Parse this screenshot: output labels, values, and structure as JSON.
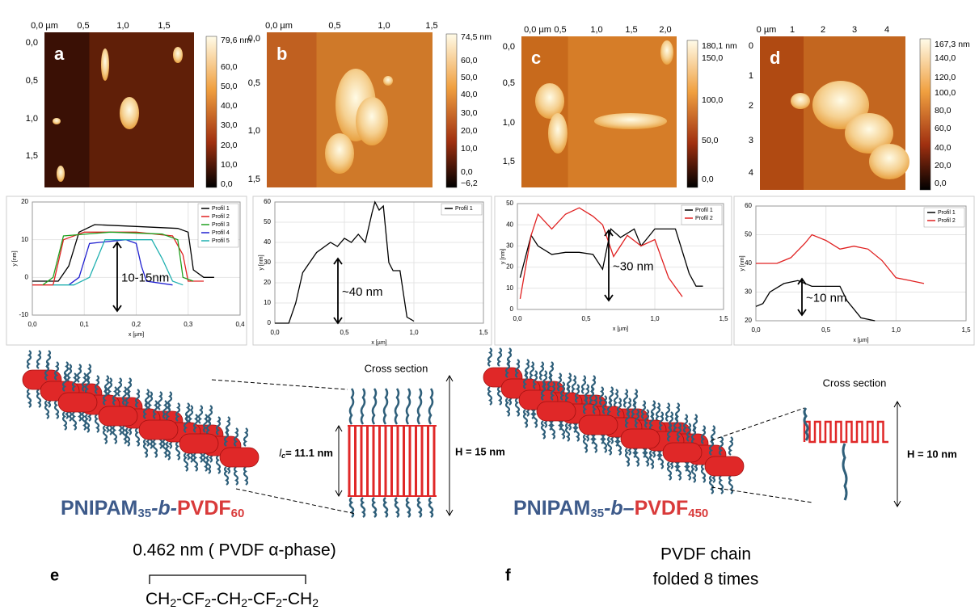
{
  "panels": [
    {
      "label": "a",
      "image": {
        "xticks": [
          "0,0 µm",
          "0,5",
          "1,0",
          "1,5"
        ],
        "yticks": [
          "0,0",
          "0,5",
          "1,0",
          "1,5"
        ],
        "colorbar": [
          "79,6 nm",
          "60,0",
          "50,0",
          "40,0",
          "30,0",
          "20,0",
          "10,0",
          "0,0"
        ]
      },
      "profile": {
        "ylabel": "y [nm]",
        "xlabel": "x [µm]",
        "annotation": "10-15nm",
        "xlim": [
          0,
          0.4
        ],
        "ylim": [
          -10,
          20
        ],
        "xticks": [
          {
            "value": 0,
            "label": "0,0"
          },
          {
            "value": 0.1,
            "label": "0,1"
          },
          {
            "value": 0.2,
            "label": "0,2"
          },
          {
            "value": 0.3,
            "label": "0,3"
          },
          {
            "value": 0.4,
            "label": "0,4"
          }
        ],
        "yticks": [
          -10,
          0,
          10,
          20
        ],
        "series": [
          {
            "name": "Profil 1",
            "color": "#000000",
            "x": [
              0,
              0.05,
              0.07,
              0.09,
              0.12,
              0.2,
              0.28,
              0.3,
              0.31,
              0.33,
              0.35
            ],
            "y": [
              -1,
              -1,
              3,
              12,
              14,
              13.5,
              13,
              12,
              2,
              0,
              0
            ]
          },
          {
            "name": "Profil 2",
            "color": "#e02020",
            "x": [
              0,
              0.04,
              0.06,
              0.1,
              0.2,
              0.27,
              0.29,
              0.3,
              0.33
            ],
            "y": [
              -2,
              -2,
              10,
              12,
              12,
              11,
              6,
              -1,
              -1
            ]
          },
          {
            "name": "Profil 3",
            "color": "#20a020",
            "x": [
              0.02,
              0.04,
              0.06,
              0.15,
              0.25,
              0.28,
              0.29,
              0.31
            ],
            "y": [
              -2,
              0,
              11,
              12,
              11.5,
              10,
              0,
              -1
            ]
          },
          {
            "name": "Profil 4",
            "color": "#2020d0",
            "x": [
              0.07,
              0.09,
              0.11,
              0.18,
              0.2,
              0.21,
              0.22,
              0.27
            ],
            "y": [
              -2,
              0,
              9,
              10,
              9,
              3,
              -1,
              -2
            ]
          },
          {
            "name": "Profil 5",
            "color": "#20b0b0",
            "x": [
              0.04,
              0.08,
              0.11,
              0.14,
              0.23,
              0.25,
              0.27,
              0.29
            ],
            "y": [
              -2,
              -2,
              0,
              10,
              10,
              5,
              -1,
              -2
            ]
          }
        ]
      }
    },
    {
      "label": "b",
      "image": {
        "xticks": [
          "0,0 µm",
          "0,5",
          "1,0",
          "1,5"
        ],
        "yticks": [
          "0,0",
          "0,5",
          "1,0",
          "1,5"
        ],
        "colorbar": [
          "74,5 nm",
          "60,0",
          "50,0",
          "40,0",
          "30,0",
          "20,0",
          "10,0",
          "0,0",
          "−6,2"
        ]
      },
      "profile": {
        "ylabel": "y [nm]",
        "xlabel": "x [µm]",
        "annotation": "~40 nm",
        "xlim": [
          0,
          1.5
        ],
        "ylim": [
          0,
          60
        ],
        "xticks": [
          {
            "value": 0,
            "label": "0,0"
          },
          {
            "value": 0.5,
            "label": "0,5"
          },
          {
            "value": 1,
            "label": "1,0"
          },
          {
            "value": 1.5,
            "label": "1,5"
          }
        ],
        "yticks": [
          0,
          10,
          20,
          30,
          40,
          50,
          60
        ],
        "series": [
          {
            "name": "Profil 1",
            "color": "#000000",
            "x": [
              0,
              0.1,
              0.15,
              0.2,
              0.3,
              0.4,
              0.45,
              0.5,
              0.55,
              0.6,
              0.65,
              0.7,
              0.72,
              0.75,
              0.78,
              0.82,
              0.85,
              0.9,
              0.95,
              1.0
            ],
            "y": [
              0,
              0,
              10,
              25,
              35,
              40,
              38,
              42,
              40,
              44,
              40,
              55,
              60,
              56,
              58,
              30,
              26,
              26,
              3,
              1
            ]
          }
        ]
      }
    },
    {
      "label": "c",
      "image": {
        "xticks": [
          "0,0 µm",
          "0,5",
          "1,0",
          "1,5",
          "2,0"
        ],
        "yticks": [
          "0,0",
          "0,5",
          "1,0",
          "1,5"
        ],
        "colorbar": [
          "180,1 nm",
          "150,0",
          "100,0",
          "50,0",
          "0,0"
        ]
      },
      "profile": {
        "ylabel": "y [nm]",
        "xlabel": "x [µm]",
        "annotation": "~30 nm",
        "xlim": [
          0,
          1.5
        ],
        "ylim": [
          0,
          50
        ],
        "xticks": [
          {
            "value": 0,
            "label": "0,0"
          },
          {
            "value": 0.5,
            "label": "0,5"
          },
          {
            "value": 1,
            "label": "1,0"
          },
          {
            "value": 1.5,
            "label": "1,5"
          }
        ],
        "yticks": [
          0,
          10,
          20,
          30,
          40,
          50
        ],
        "series": [
          {
            "name": "Profil 1",
            "color": "#000000",
            "x": [
              0.02,
              0.1,
              0.15,
              0.25,
              0.35,
              0.45,
              0.55,
              0.62,
              0.68,
              0.75,
              0.85,
              0.9,
              1.0,
              1.05,
              1.15,
              1.25,
              1.3,
              1.35
            ],
            "y": [
              15,
              35,
              30,
              26,
              27,
              27,
              26,
              19,
              38,
              34,
              38,
              30,
              38,
              38,
              38,
              17,
              11,
              11
            ]
          },
          {
            "name": "Profil 2",
            "color": "#e02020",
            "x": [
              0.02,
              0.1,
              0.15,
              0.25,
              0.35,
              0.45,
              0.55,
              0.62,
              0.7,
              0.8,
              0.9,
              1.0,
              1.1,
              1.2
            ],
            "y": [
              5,
              35,
              45,
              38,
              45,
              48,
              44,
              40,
              25,
              35,
              30,
              33,
              15,
              6
            ]
          }
        ]
      }
    },
    {
      "label": "d",
      "image": {
        "xticks": [
          "0 µm",
          "1",
          "2",
          "3",
          "4"
        ],
        "yticks": [
          "0",
          "1",
          "2",
          "3",
          "4"
        ],
        "colorbar": [
          "167,3 nm",
          "140,0",
          "120,0",
          "100,0",
          "80,0",
          "60,0",
          "40,0",
          "20,0",
          "0,0"
        ]
      },
      "profile": {
        "ylabel": "y [nm]",
        "xlabel": "x [µm]",
        "annotation": "~10 nm",
        "xlim": [
          0,
          1.5
        ],
        "ylim": [
          20,
          60
        ],
        "xticks": [
          {
            "value": 0,
            "label": "0,0"
          },
          {
            "value": 0.5,
            "label": "0,5"
          },
          {
            "value": 1,
            "label": "1,0"
          },
          {
            "value": 1.5,
            "label": "1,5"
          }
        ],
        "yticks": [
          20,
          30,
          40,
          50,
          60
        ],
        "series": [
          {
            "name": "Profil 1",
            "color": "#000000",
            "x": [
              0,
              0.05,
              0.1,
              0.2,
              0.3,
              0.4,
              0.5,
              0.6,
              0.65,
              0.75,
              0.85
            ],
            "y": [
              25,
              26,
              30,
              33,
              34,
              32,
              32,
              32,
              27,
              21,
              20
            ]
          },
          {
            "name": "Profil 2",
            "color": "#e02020",
            "x": [
              0,
              0.15,
              0.25,
              0.35,
              0.4,
              0.5,
              0.6,
              0.7,
              0.8,
              0.9,
              1.0,
              1.1,
              1.2
            ],
            "y": [
              40,
              40,
              42,
              47,
              50,
              48,
              45,
              46,
              45,
              41,
              35,
              34,
              33
            ]
          }
        ]
      }
    }
  ],
  "scheme_e": {
    "label": "e",
    "cross_section": "Cross section",
    "lc_symbol": "l",
    "lc_sub": "c",
    "lc_value": "= 11.1 nm",
    "height": "H = 15 nm",
    "polymer": [
      "PNIPAM",
      "35",
      "-b-",
      "PVDF",
      "60"
    ],
    "spacing": "0.462 nm ( PVDF α-phase)",
    "formula": [
      [
        "CH",
        "2"
      ],
      [
        "-CF",
        "2"
      ],
      [
        "-CH",
        "2"
      ],
      [
        "-CF",
        "2"
      ],
      [
        "-CH",
        "2"
      ]
    ]
  },
  "scheme_f": {
    "label": "f",
    "cross_section": "Cross section",
    "height": "H = 10 nm",
    "polymer": [
      "PNIPAM",
      "35",
      "-b–",
      "PVDF",
      "450"
    ],
    "caption": [
      "PVDF chain",
      "folded 8 times"
    ]
  }
}
